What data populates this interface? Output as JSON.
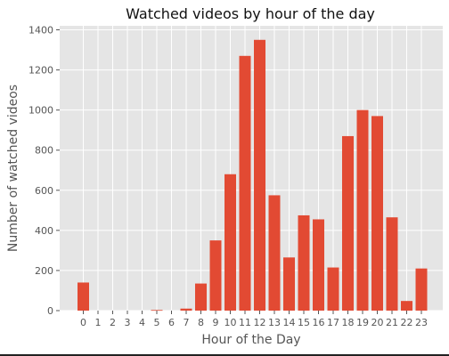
{
  "chart_data": {
    "type": "bar",
    "title": "Watched videos by hour of the day",
    "xlabel": "Hour of the Day",
    "ylabel": "Number of watched videos",
    "categories": [
      "0",
      "1",
      "2",
      "3",
      "4",
      "5",
      "6",
      "7",
      "8",
      "9",
      "10",
      "11",
      "12",
      "13",
      "14",
      "15",
      "16",
      "17",
      "18",
      "19",
      "20",
      "21",
      "22",
      "23"
    ],
    "values": [
      140,
      0,
      0,
      0,
      0,
      3,
      0,
      10,
      135,
      350,
      680,
      1270,
      1350,
      575,
      265,
      475,
      455,
      215,
      870,
      1000,
      970,
      465,
      48,
      210
    ],
    "ylim": [
      0,
      1420
    ],
    "yticks": [
      0,
      200,
      400,
      600,
      800,
      1000,
      1200,
      1400
    ],
    "grid": true,
    "colors": {
      "bar": "#E24A33",
      "background": "#E5E5E5",
      "grid": "#FFFFFF"
    }
  }
}
